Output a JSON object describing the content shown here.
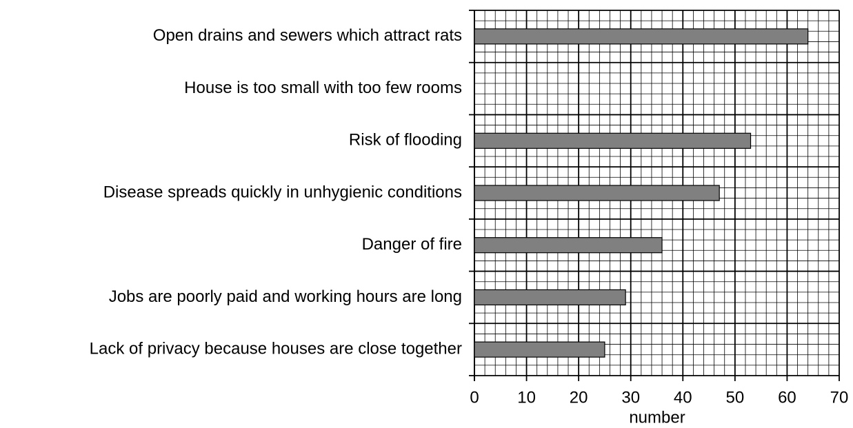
{
  "chart_data": {
    "type": "bar",
    "orientation": "horizontal",
    "categories": [
      "Open drains and sewers which attract rats",
      "House is too small with too few rooms",
      "Risk of flooding",
      "Disease spreads quickly in unhygienic conditions",
      "Danger of fire",
      "Jobs are poorly paid and working hours are long",
      "Lack of privacy because houses are close together"
    ],
    "values": [
      64,
      0,
      53,
      47,
      36,
      29,
      25
    ],
    "color": "#808080",
    "x_label": "number",
    "xlim": [
      0,
      70
    ],
    "xticks": [
      0,
      10,
      20,
      30,
      40,
      50,
      60,
      70
    ],
    "grid": true
  }
}
